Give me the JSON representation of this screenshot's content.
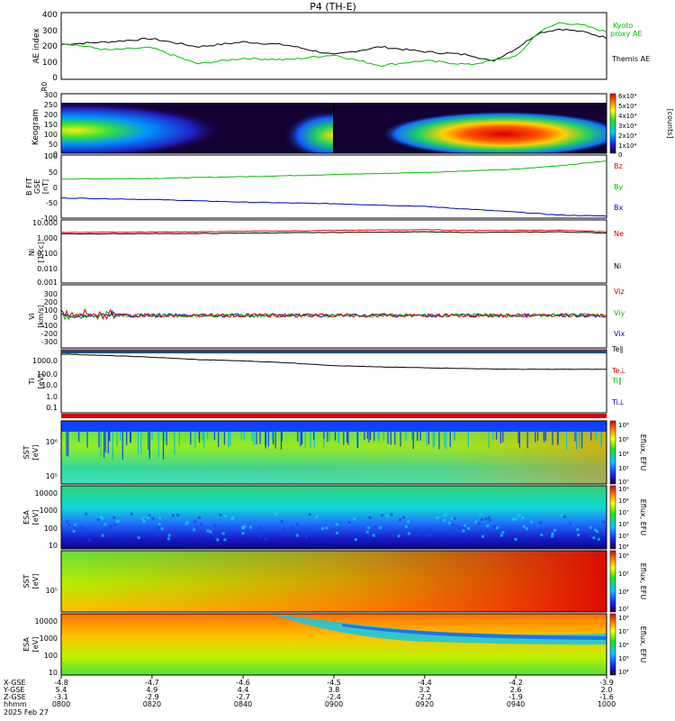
{
  "title": "P4 (TH-E)",
  "date_label": "2025 Feb 27",
  "ephemeris_labels": [
    "X-GSE",
    "Y-GSE",
    "Z-GSE",
    "hhmm"
  ],
  "ephemeris": {
    "x": [
      "-4.8",
      "-4.7",
      "-4.6",
      "-4.5",
      "-4.4",
      "-4.2",
      "-3.9"
    ],
    "y": [
      "5.4",
      "4.9",
      "4.4",
      "3.8",
      "3.2",
      "2.6",
      "2.0"
    ],
    "z": [
      "-3.1",
      "-2.9",
      "-2.7",
      "-2.4",
      "-2.2",
      "-1.9",
      "-1.6"
    ],
    "t": [
      "0800",
      "0820",
      "0840",
      "0900",
      "0920",
      "0940",
      "1000"
    ]
  },
  "chart_data": [
    {
      "type": "line",
      "ylabel": "AE index",
      "ylim": [
        0,
        400
      ],
      "y_ticks": [
        "400",
        "300",
        "200",
        "100",
        "0"
      ],
      "legend": [
        {
          "name": "Kyoto",
          "color": "#00c000"
        },
        {
          "name": "proxy AE",
          "color": "#00c000"
        },
        {
          "name": "Themis AE",
          "color": "#000000"
        }
      ],
      "x_hours": [
        8.0,
        8.17,
        8.33,
        8.5,
        8.67,
        8.83,
        9.0,
        9.17,
        9.33,
        9.5,
        9.58,
        9.67,
        9.75,
        9.83,
        9.92,
        10.0
      ],
      "series": [
        {
          "color": "#000000",
          "values": [
            215,
            230,
            250,
            200,
            230,
            210,
            150,
            200,
            170,
            150,
            110,
            190,
            285,
            310,
            290,
            255
          ]
        },
        {
          "color": "#00c000",
          "values": [
            225,
            180,
            195,
            95,
            130,
            120,
            150,
            85,
            115,
            90,
            115,
            140,
            290,
            350,
            330,
            290
          ]
        }
      ]
    },
    {
      "type": "heatmap",
      "ylabel": "Keogram",
      "ylabel2": "R0",
      "y_ticks": [
        "300",
        "250",
        "200",
        "150",
        "100",
        "50",
        "0"
      ],
      "colorbar_label": "[counts]",
      "colorbar_ticks": [
        "6x10⁴",
        "5x10⁴",
        "4x10⁴",
        "3x10⁴",
        "2x10⁴",
        "1x10⁴",
        "0"
      ]
    },
    {
      "type": "line",
      "ylabel": "B FIT",
      "ylabel2": "GSE",
      "ylabel3": "[nT]",
      "ylim": [
        -100,
        100
      ],
      "y_ticks": [
        "100",
        "50",
        "0",
        "-50",
        "-100"
      ],
      "legend": [
        {
          "name": "Bz",
          "color": "#dd0000"
        },
        {
          "name": "By",
          "color": "#00c000"
        },
        {
          "name": "Bx",
          "color": "#0000cc"
        }
      ],
      "x_hours": [
        8.0,
        8.33,
        8.67,
        9.0,
        9.33,
        9.67,
        9.83,
        10.0
      ],
      "series": [
        {
          "color": "#00c000",
          "values": [
            25,
            27,
            33,
            40,
            47,
            58,
            70,
            85
          ]
        },
        {
          "color": "#0000cc",
          "values": [
            -38,
            -43,
            -52,
            -57,
            -66,
            -85,
            -95,
            -98
          ]
        }
      ]
    },
    {
      "type": "line",
      "ylabel": "Ni",
      "ylabel2": "[1/cc]",
      "y_ticks": [
        "10.000",
        "1.000",
        "0.100",
        "0.010",
        "0.001"
      ],
      "legend": [
        {
          "name": "Ne",
          "color": "#dd0000"
        },
        {
          "name": "Ni",
          "color": "#000000"
        }
      ],
      "x_hours": [
        8.0,
        8.5,
        9.0,
        9.33,
        9.5,
        9.83,
        10.0
      ],
      "series": [
        {
          "color": "#dd0000",
          "values": [
            2.0,
            2.2,
            2.7,
            3.0,
            2.7,
            2.8,
            2.2
          ]
        },
        {
          "color": "#000000",
          "values": [
            1.6,
            1.7,
            2.0,
            2.2,
            2.0,
            2.2,
            1.8
          ]
        }
      ]
    },
    {
      "type": "line",
      "ylabel": "Vi",
      "ylabel2": "[km/s]",
      "ylim": [
        -400,
        400
      ],
      "y_ticks": [
        "300",
        "200",
        "100",
        "0",
        "-100",
        "-200",
        "-300"
      ],
      "legend": [
        {
          "name": "Viz",
          "color": "#dd0000"
        },
        {
          "name": "Viy",
          "color": "#00c000"
        },
        {
          "name": "Vix",
          "color": "#0000cc"
        }
      ]
    },
    {
      "type": "line",
      "ylabel": "Ti",
      "ylabel2": "[eV]",
      "y_ticks": [
        "1000.0",
        "100.0",
        "10.0",
        "1.0",
        "0.1"
      ],
      "legend": [
        {
          "name": "Te∥",
          "color": "#000000"
        },
        {
          "name": "Te⊥",
          "color": "#dd0000"
        },
        {
          "name": "Ti∥",
          "color": "#00c000"
        },
        {
          "name": "Ti⊥",
          "color": "#0000cc"
        }
      ],
      "x_hours": [
        8.0,
        8.17,
        8.33,
        8.5,
        8.67,
        8.83,
        9.0,
        9.17,
        9.33,
        9.5,
        9.67,
        9.83,
        10.0
      ],
      "series": [
        {
          "color": "#000000",
          "values": [
            2500,
            1900,
            1400,
            900,
            700,
            500,
            300,
            230,
            200,
            170,
            150,
            150,
            150
          ]
        }
      ]
    },
    {
      "type": "heatmap",
      "ylabel": "SST",
      "ylabel2": "[eV]",
      "y_ticks": [
        "10⁶",
        "10⁵"
      ],
      "colorbar_label": "Eflux, EFU",
      "colorbar_ticks": [
        "10⁸",
        "10⁶",
        "10⁴",
        "10²",
        "10⁰"
      ]
    },
    {
      "type": "heatmap",
      "ylabel": "ESA",
      "ylabel2": "[eV]",
      "y_ticks": [
        "10000",
        "1000",
        "100",
        "10"
      ],
      "colorbar_label": "Eflux, EFU",
      "colorbar_ticks": [
        "10⁹",
        "10⁸",
        "10⁷",
        "10⁶",
        "10⁵",
        "10⁴"
      ]
    },
    {
      "type": "heatmap",
      "ylabel": "SST",
      "ylabel2": "[eV]",
      "y_ticks": [
        "10⁵"
      ],
      "colorbar_label": "Eflux, EFU",
      "colorbar_ticks": [
        "10⁶",
        "10⁵",
        "10⁴",
        "10³"
      ]
    },
    {
      "type": "heatmap",
      "ylabel": "ESA",
      "ylabel2": "[eV]",
      "y_ticks": [
        "10000",
        "1000",
        "100",
        "10"
      ],
      "colorbar_label": "Eflux, EFU",
      "colorbar_ticks": [
        "10⁸",
        "10⁷",
        "10⁶",
        "10⁵",
        "10⁴"
      ]
    }
  ]
}
